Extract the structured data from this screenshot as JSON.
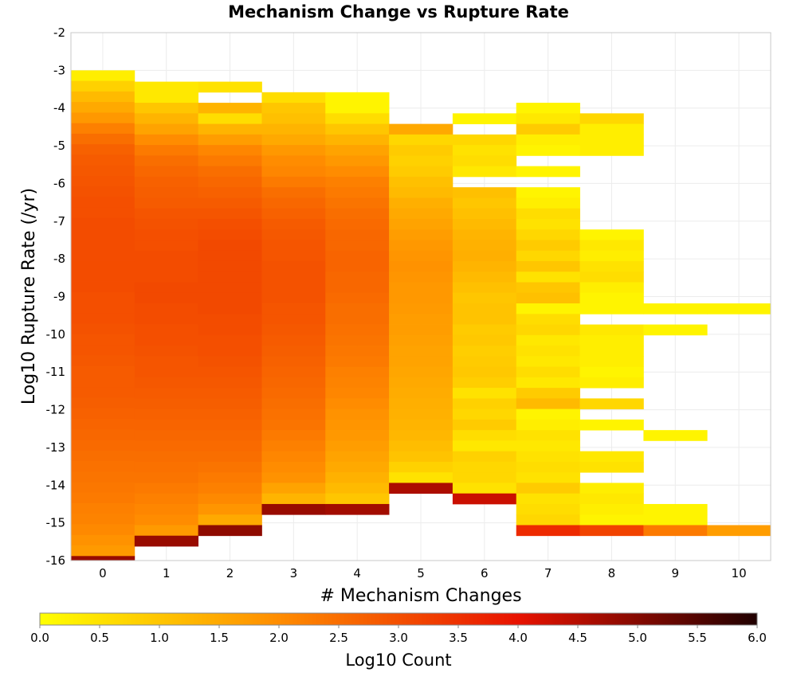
{
  "chart_data": {
    "type": "heatmap",
    "title": "Mechanism Change vs Rupture Rate",
    "xlabel": "# Mechanism Changes",
    "ylabel": "Log10 Rupture Rate (/yr)",
    "x_ticks": [
      "0",
      "1",
      "2",
      "3",
      "4",
      "5",
      "6",
      "7",
      "8",
      "9",
      "10"
    ],
    "y_ticks": [
      "-2",
      "-3",
      "-4",
      "-5",
      "-6",
      "-7",
      "-8",
      "-9",
      "-10",
      "-11",
      "-12",
      "-13",
      "-14",
      "-15",
      "-16"
    ],
    "xlim": [
      -0.5,
      10.5
    ],
    "ylim": [
      -16,
      -2
    ],
    "bin_height": 0.28,
    "grid": true,
    "colorbar": {
      "label": "Log10 Count",
      "range": [
        0.0,
        6.0
      ],
      "ticks": [
        "0.0",
        "0.5",
        "1.0",
        "1.5",
        "2.0",
        "2.5",
        "3.0",
        "3.5",
        "4.0",
        "4.5",
        "5.0",
        "5.5",
        "6.0"
      ],
      "colormap": [
        "#ffff00",
        "#ff8c00",
        "#e81200",
        "#200000"
      ]
    },
    "columns": [
      {
        "x": 0,
        "y_top": -3.0,
        "values": [
          0.3,
          0.8,
          1.2,
          1.5,
          1.8,
          2.2,
          2.5,
          2.7,
          2.8,
          2.85,
          2.9,
          2.95,
          3.0,
          3.0,
          3.05,
          3.05,
          3.05,
          3.05,
          3.05,
          3.05,
          3.05,
          3.0,
          3.0,
          3.0,
          2.95,
          2.9,
          2.9,
          2.85,
          2.8,
          2.8,
          2.8,
          2.75,
          2.7,
          2.65,
          2.6,
          2.55,
          2.5,
          2.45,
          2.4,
          2.35,
          2.3,
          2.2,
          2.15,
          2.05,
          1.9,
          1.75,
          4.8
        ]
      },
      {
        "x": 1,
        "y_top": -3.3,
        "values": [
          0.4,
          0.4,
          1.0,
          1.3,
          1.6,
          2.0,
          2.3,
          2.5,
          2.6,
          2.7,
          2.75,
          2.8,
          2.9,
          2.95,
          3.0,
          3.0,
          3.05,
          3.05,
          3.05,
          3.1,
          3.1,
          3.05,
          3.05,
          3.0,
          3.0,
          2.95,
          2.9,
          2.9,
          2.85,
          2.8,
          2.75,
          2.7,
          2.65,
          2.6,
          2.55,
          2.5,
          2.45,
          2.4,
          2.3,
          2.2,
          2.1,
          2.0,
          1.75,
          4.8
        ]
      },
      {
        "x": 2,
        "y_top": -3.3,
        "values": [
          0.5,
          null,
          1.3,
          0.6,
          1.3,
          1.7,
          2.1,
          2.3,
          2.5,
          2.6,
          2.7,
          2.8,
          2.9,
          3.0,
          3.05,
          3.1,
          3.1,
          3.1,
          3.1,
          3.1,
          3.1,
          3.1,
          3.05,
          3.05,
          3.0,
          3.0,
          2.95,
          2.9,
          2.85,
          2.8,
          2.75,
          2.7,
          2.65,
          2.6,
          2.55,
          2.5,
          2.4,
          2.3,
          2.2,
          2.05,
          1.85,
          1.5,
          4.9
        ]
      },
      {
        "x": 3,
        "y_top": -3.58,
        "values": [
          0.6,
          1.0,
          1.1,
          1.3,
          1.5,
          1.8,
          2.0,
          2.1,
          2.3,
          2.5,
          2.6,
          2.7,
          2.8,
          2.85,
          2.9,
          2.9,
          2.95,
          2.95,
          2.95,
          2.95,
          2.9,
          2.9,
          2.85,
          2.8,
          2.75,
          2.7,
          2.65,
          2.6,
          2.55,
          2.5,
          2.45,
          2.4,
          2.3,
          2.2,
          2.1,
          2.0,
          1.9,
          1.6,
          1.3,
          4.8
        ]
      },
      {
        "x": 4,
        "y_top": -3.58,
        "values": [
          0.2,
          0.2,
          0.6,
          1.0,
          1.3,
          1.6,
          1.8,
          2.0,
          2.2,
          2.3,
          2.4,
          2.5,
          2.55,
          2.6,
          2.6,
          2.65,
          2.65,
          2.6,
          2.6,
          2.55,
          2.5,
          2.5,
          2.45,
          2.4,
          2.35,
          2.3,
          2.2,
          2.15,
          2.1,
          2.0,
          1.9,
          1.85,
          1.8,
          1.7,
          1.6,
          1.5,
          1.35,
          1.2,
          1.0,
          4.7
        ]
      },
      {
        "x": 5,
        "y_top": -4.42,
        "values": [
          1.5,
          0.7,
          0.9,
          0.8,
          0.9,
          1.1,
          1.2,
          1.4,
          1.5,
          1.6,
          1.7,
          1.8,
          1.85,
          1.9,
          1.85,
          1.8,
          1.8,
          1.75,
          1.7,
          1.7,
          1.65,
          1.6,
          1.6,
          1.55,
          1.5,
          1.45,
          1.4,
          1.35,
          1.3,
          1.25,
          1.15,
          1.05,
          0.8,
          0.5,
          4.6
        ]
      },
      {
        "x": 6,
        "y_top": -4.14,
        "values": [
          0.2,
          null,
          0.7,
          0.5,
          0.6,
          0.4,
          null,
          1.1,
          1.0,
          1.1,
          1.2,
          1.3,
          1.35,
          1.4,
          1.3,
          1.2,
          1.1,
          1.0,
          1.05,
          1.05,
          0.9,
          0.95,
          0.85,
          0.9,
          0.95,
          0.85,
          0.5,
          0.8,
          0.7,
          0.9,
          0.6,
          0.4,
          0.8,
          0.7,
          0.7,
          0.5,
          4.3
        ]
      },
      {
        "x": 7,
        "y_top": -3.86,
        "values": [
          0.2,
          0.4,
          0.9,
          0.3,
          0.2,
          null,
          0.2,
          null,
          0.2,
          0.3,
          0.6,
          0.5,
          0.7,
          0.9,
          0.7,
          1.0,
          0.5,
          1.0,
          1.1,
          0.2,
          0.6,
          0.7,
          0.4,
          0.5,
          0.4,
          0.6,
          0.4,
          0.9,
          1.2,
          0.2,
          0.3,
          0.5,
          0.4,
          0.5,
          0.6,
          0.5,
          0.9,
          0.5,
          0.6,
          0.7,
          3.6
        ]
      },
      {
        "x": 8,
        "y_top": -4.14,
        "values": [
          0.7,
          0.3,
          0.3,
          0.3,
          null,
          null,
          null,
          null,
          null,
          null,
          null,
          0.2,
          0.4,
          0.3,
          0.5,
          0.6,
          0.3,
          0.2,
          0.2,
          null,
          0.4,
          0.3,
          0.3,
          0.3,
          0.2,
          0.3,
          null,
          0.7,
          null,
          0.2,
          null,
          null,
          0.4,
          0.5,
          null,
          0.3,
          0.4,
          0.3,
          0.2,
          3.2
        ]
      },
      {
        "x": 9,
        "y_top": -9.18,
        "values": [
          0.2,
          null,
          0.2,
          null,
          null,
          null,
          null,
          null,
          null,
          null,
          null,
          null,
          0.2,
          null,
          null,
          null,
          null,
          null,
          null,
          0.2,
          0.2,
          2.3
        ]
      },
      {
        "x": 10,
        "y_top": -9.18,
        "values": [
          0.2,
          null,
          null,
          null,
          null,
          null,
          null,
          null,
          null,
          null,
          null,
          null,
          null,
          null,
          null,
          null,
          null,
          null,
          null,
          null,
          null,
          1.7
        ]
      }
    ]
  }
}
